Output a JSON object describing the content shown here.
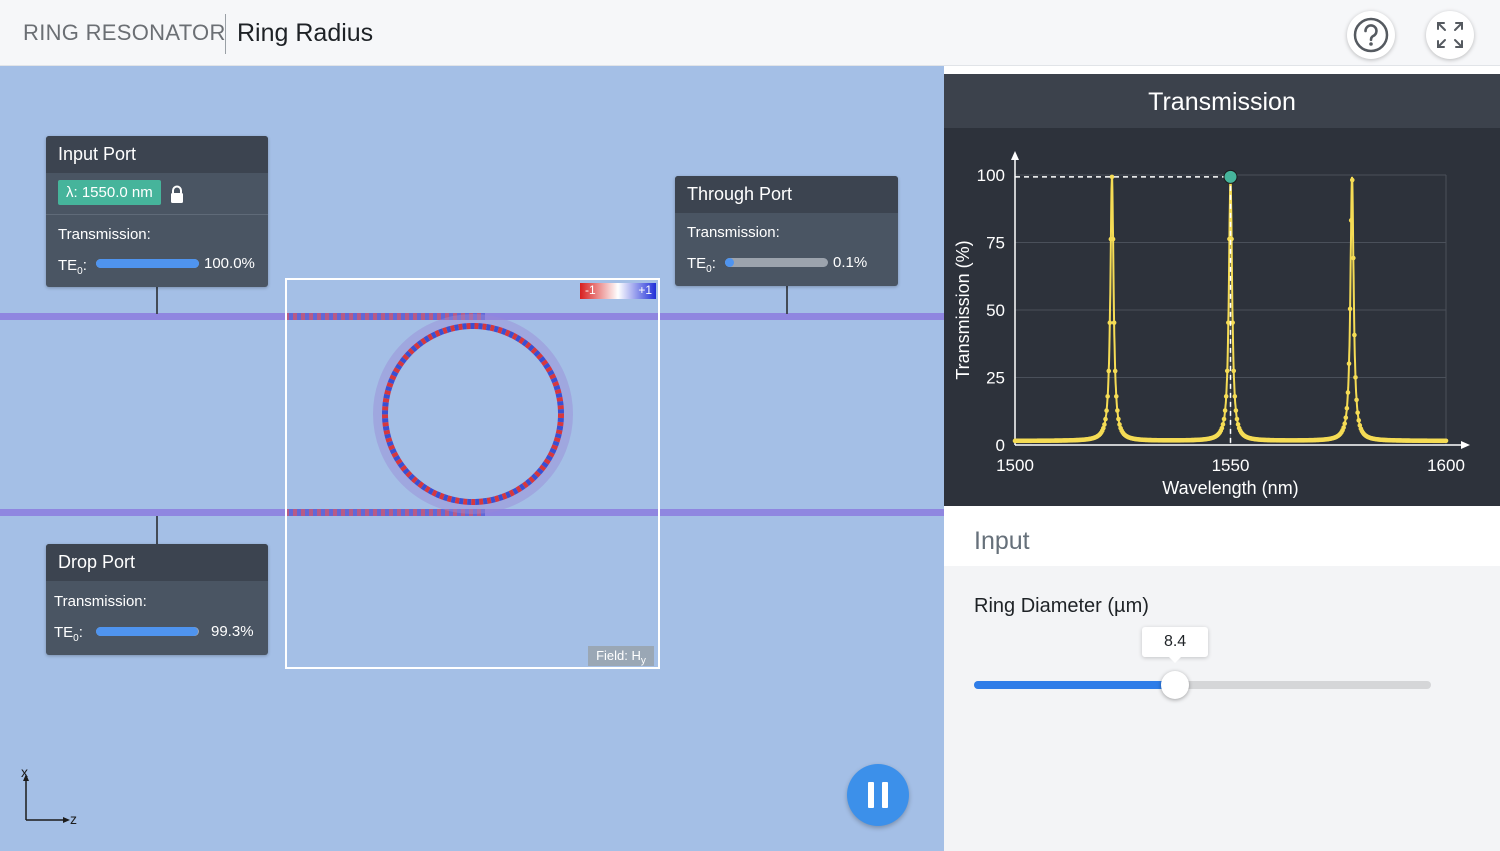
{
  "header": {
    "app_title": "RING RESONATOR",
    "page_title": "Ring Radius",
    "help_icon": "help-icon",
    "fullscreen_icon": "fullscreen-icon"
  },
  "input_port": {
    "title": "Input Port",
    "wavelength": "λ: 1550.0 nm",
    "lock_icon": "lock-icon",
    "transmission_label": "Transmission:",
    "te_label": "TE",
    "te_sub": "0",
    "te_suffix": ":",
    "value_text": "100.0%",
    "fraction": 1.0
  },
  "through_port": {
    "title": "Through Port",
    "transmission_label": "Transmission:",
    "te_label": "TE",
    "te_sub": "0",
    "te_suffix": ":",
    "value_text": "0.1%",
    "fraction": 0.001
  },
  "drop_port": {
    "title": "Drop Port",
    "transmission_label": "Transmission:",
    "te_label": "TE",
    "te_sub": "0",
    "te_suffix": ":",
    "value_text": "99.3%",
    "fraction": 0.993
  },
  "field_view": {
    "colorbar_min": "-1",
    "colorbar_max": "+1",
    "field_label": "Field: H",
    "field_sub": "y"
  },
  "axes": {
    "x": "x",
    "z": "z"
  },
  "controls": {
    "pause_icon": "pause-icon"
  },
  "colors": {
    "accent_blue": "#3c90ea",
    "waveguide": "#8f86e0",
    "curve": "#f5dc55",
    "marker": "#46b49b"
  },
  "chart_data": {
    "type": "line",
    "title": "Transmission",
    "xlabel": "Wavelength (nm)",
    "ylabel": "Transmission (%)",
    "xlim": [
      1500,
      1600
    ],
    "ylim": [
      0,
      100
    ],
    "xticks": [
      "1500",
      "1550",
      "1600"
    ],
    "yticks": [
      "0",
      "25",
      "50",
      "75",
      "100"
    ],
    "grid": true,
    "peaks_nm": [
      1522.5,
      1550.0,
      1578.2
    ],
    "peak_max": 99.3,
    "baseline": 1.5,
    "half_width_nm": 0.45,
    "marker": {
      "x": 1550,
      "y": 99.3
    }
  },
  "input_panel": {
    "title": "Input",
    "slider": {
      "label": "Ring Diameter (µm)",
      "value": "8.4",
      "fraction": 0.44
    }
  }
}
